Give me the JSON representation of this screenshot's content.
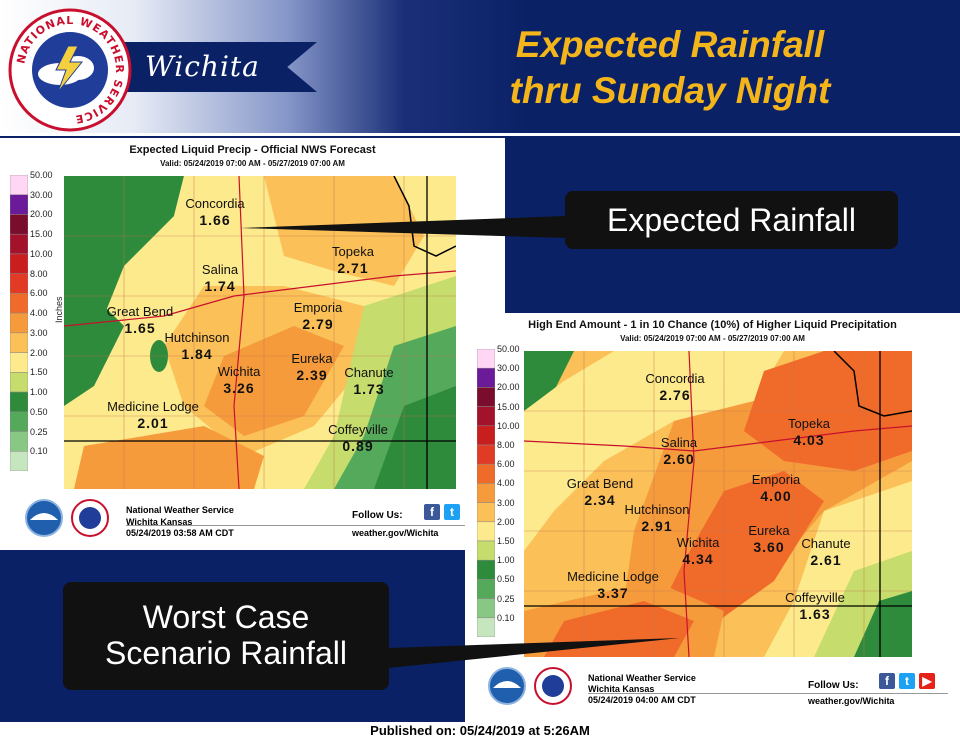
{
  "header": {
    "office": "Wichita",
    "seal_text": "NATIONAL WEATHER SERVICE",
    "title_line1": "Expected Rainfall",
    "title_line2": "thru Sunday Night"
  },
  "legend": {
    "unit": "Inches",
    "breaks": [
      "50.00",
      "30.00",
      "20.00",
      "15.00",
      "10.00",
      "8.00",
      "6.00",
      "4.00",
      "3.00",
      "2.00",
      "1.50",
      "1.00",
      "0.50",
      "0.25",
      "0.10"
    ],
    "colors": [
      "#ffd6f4",
      "#6b1b9a",
      "#7a0c2e",
      "#a3122b",
      "#c81e1e",
      "#e23b25",
      "#f06b2a",
      "#f59b3c",
      "#fbc057",
      "#fdea8c",
      "#c6dc6c",
      "#2e8b3c",
      "#55a95a",
      "#88c884",
      "#c6e6bf"
    ]
  },
  "maps": [
    {
      "title": "Expected Liquid Precip - Official NWS Forecast",
      "valid": "Valid: 05/24/2019 07:00 AM - 05/27/2019 07:00 AM",
      "footer": {
        "org": "National Weather Service",
        "location": "Wichita Kansas",
        "timestamp": "05/24/2019 03:58 AM CDT",
        "follow": "Follow Us:",
        "website": "weather.gov/Wichita"
      },
      "cities": [
        {
          "name": "Concordia",
          "value": "1.66"
        },
        {
          "name": "Topeka",
          "value": "2.71"
        },
        {
          "name": "Salina",
          "value": "1.74"
        },
        {
          "name": "Great Bend",
          "value": "1.65"
        },
        {
          "name": "Emporia",
          "value": "2.79"
        },
        {
          "name": "Hutchinson",
          "value": "1.84"
        },
        {
          "name": "Eureka",
          "value": "2.39"
        },
        {
          "name": "Chanute",
          "value": "1.73"
        },
        {
          "name": "Wichita",
          "value": "3.26"
        },
        {
          "name": "Medicine Lodge",
          "value": "2.01"
        },
        {
          "name": "Coffeyville",
          "value": "0.89"
        }
      ]
    },
    {
      "title": "High End Amount - 1 in 10 Chance (10%) of Higher Liquid Precipitation",
      "valid": "Valid: 05/24/2019 07:00 AM - 05/27/2019 07:00 AM",
      "footer": {
        "org": "National Weather Service",
        "location": "Wichita Kansas",
        "timestamp": "05/24/2019 04:00 AM CDT",
        "follow": "Follow Us:",
        "website": "weather.gov/Wichita"
      },
      "cities": [
        {
          "name": "Concordia",
          "value": "2.76"
        },
        {
          "name": "Topeka",
          "value": "4.03"
        },
        {
          "name": "Salina",
          "value": "2.60"
        },
        {
          "name": "Great Bend",
          "value": "2.34"
        },
        {
          "name": "Emporia",
          "value": "4.00"
        },
        {
          "name": "Hutchinson",
          "value": "2.91"
        },
        {
          "name": "Eureka",
          "value": "3.60"
        },
        {
          "name": "Chanute",
          "value": "2.61"
        },
        {
          "name": "Wichita",
          "value": "4.34"
        },
        {
          "name": "Medicine Lodge",
          "value": "3.37"
        },
        {
          "name": "Coffeyville",
          "value": "1.63"
        }
      ]
    }
  ],
  "callouts": {
    "expected": "Expected Rainfall",
    "worst_line1": "Worst Case",
    "worst_line2": "Scenario Rainfall"
  },
  "published": "Published on: 05/24/2019 at 5:26AM"
}
